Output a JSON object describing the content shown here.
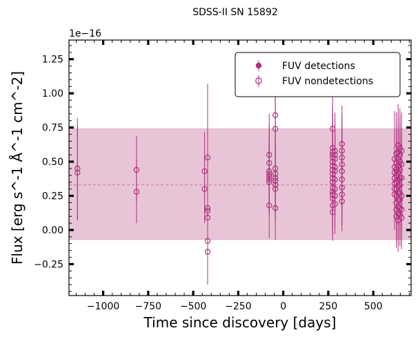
{
  "chart_data": {
    "type": "scatter",
    "title": "SDSS-II SN 15892",
    "xlabel": "Time since discovery [days]",
    "ylabel": "Flux [erg s^-1 Å^-1 cm^-2]",
    "y_offset_label": "1e−16",
    "xlim": [
      -1190,
      710
    ],
    "ylim": [
      -0.48,
      1.39
    ],
    "x_ticks": [
      -1000,
      -750,
      -500,
      -250,
      0,
      250,
      500
    ],
    "x_tick_labels": [
      "−1000",
      "−750",
      "−500",
      "−250",
      "0",
      "250",
      "500"
    ],
    "y_ticks": [
      -0.25,
      0.0,
      0.25,
      0.5,
      0.75,
      1.0,
      1.25
    ],
    "y_tick_labels": [
      "−0.25",
      "0.00",
      "0.25",
      "0.50",
      "0.75",
      "1.00",
      "1.25"
    ],
    "grid": false,
    "legend_position": "top-right",
    "colors": {
      "series": "#b0307f",
      "band_fill": "#e8c5d6",
      "band_edge": "#d8a2be",
      "median_line": "#d96a9a"
    },
    "band": {
      "low": -0.07,
      "high": 0.74,
      "median": 0.33
    },
    "series": [
      {
        "name": "FUV detections",
        "marker": "filled-circle",
        "points": []
      },
      {
        "name": "FUV nondetections",
        "marker": "open-circle",
        "points": [
          [
            -1143,
            0.45,
            0.37
          ],
          [
            -1143,
            0.42,
            0.35
          ],
          [
            -815,
            0.44,
            0.25
          ],
          [
            -815,
            0.28,
            0.23
          ],
          [
            -437,
            0.43,
            0.29
          ],
          [
            -437,
            0.3,
            0.25
          ],
          [
            -420,
            0.53,
            0.54
          ],
          [
            -420,
            0.16,
            0.28
          ],
          [
            -420,
            0.14,
            0.27
          ],
          [
            -420,
            0.09,
            0.26
          ],
          [
            -420,
            -0.08,
            0.29
          ],
          [
            -420,
            -0.16,
            0.24
          ],
          [
            -78,
            0.55,
            0.3
          ],
          [
            -78,
            0.49,
            0.28
          ],
          [
            -78,
            0.43,
            0.27
          ],
          [
            -78,
            0.41,
            0.26
          ],
          [
            -78,
            0.39,
            0.26
          ],
          [
            -78,
            0.37,
            0.25
          ],
          [
            -78,
            0.35,
            0.25
          ],
          [
            -78,
            0.18,
            0.24
          ],
          [
            -44,
            0.84,
            0.3
          ],
          [
            -44,
            0.74,
            0.28
          ],
          [
            -44,
            0.45,
            0.27
          ],
          [
            -44,
            0.41,
            0.26
          ],
          [
            -44,
            0.38,
            0.25
          ],
          [
            -44,
            0.36,
            0.25
          ],
          [
            -44,
            0.33,
            0.24
          ],
          [
            -44,
            0.3,
            0.24
          ],
          [
            -44,
            0.16,
            0.23
          ],
          [
            274,
            0.74,
            0.4
          ],
          [
            274,
            0.6,
            0.3
          ],
          [
            274,
            0.57,
            0.28
          ],
          [
            274,
            0.55,
            0.28
          ],
          [
            274,
            0.53,
            0.27
          ],
          [
            274,
            0.5,
            0.27
          ],
          [
            274,
            0.47,
            0.26
          ],
          [
            274,
            0.44,
            0.26
          ],
          [
            274,
            0.41,
            0.25
          ],
          [
            274,
            0.38,
            0.25
          ],
          [
            274,
            0.35,
            0.24
          ],
          [
            274,
            0.31,
            0.24
          ],
          [
            274,
            0.28,
            0.23
          ],
          [
            274,
            0.26,
            0.23
          ],
          [
            274,
            0.23,
            0.22
          ],
          [
            274,
            0.18,
            0.22
          ],
          [
            274,
            0.13,
            0.21
          ],
          [
            287,
            0.58,
            0.28
          ],
          [
            287,
            0.55,
            0.27
          ],
          [
            287,
            0.52,
            0.26
          ],
          [
            287,
            0.46,
            0.26
          ],
          [
            287,
            0.43,
            0.25
          ],
          [
            287,
            0.37,
            0.24
          ],
          [
            287,
            0.3,
            0.23
          ],
          [
            287,
            0.25,
            0.23
          ],
          [
            287,
            0.19,
            0.22
          ],
          [
            326,
            0.63,
            0.28
          ],
          [
            326,
            0.58,
            0.27
          ],
          [
            326,
            0.53,
            0.27
          ],
          [
            326,
            0.48,
            0.26
          ],
          [
            326,
            0.43,
            0.25
          ],
          [
            326,
            0.37,
            0.24
          ],
          [
            326,
            0.31,
            0.24
          ],
          [
            326,
            0.26,
            0.23
          ],
          [
            326,
            0.21,
            0.22
          ],
          [
            618,
            0.52,
            0.35
          ],
          [
            618,
            0.46,
            0.3
          ],
          [
            618,
            0.42,
            0.3
          ],
          [
            618,
            0.38,
            0.29
          ],
          [
            618,
            0.34,
            0.28
          ],
          [
            618,
            0.3,
            0.27
          ],
          [
            618,
            0.26,
            0.26
          ],
          [
            628,
            0.56,
            0.3
          ],
          [
            628,
            0.49,
            0.29
          ],
          [
            628,
            0.44,
            0.28
          ],
          [
            628,
            0.4,
            0.27
          ],
          [
            628,
            0.35,
            0.26
          ],
          [
            628,
            0.3,
            0.26
          ],
          [
            628,
            0.25,
            0.25
          ],
          [
            628,
            0.2,
            0.24
          ],
          [
            628,
            0.15,
            0.24
          ],
          [
            628,
            0.1,
            0.23
          ],
          [
            638,
            0.62,
            0.3
          ],
          [
            638,
            0.57,
            0.29
          ],
          [
            638,
            0.52,
            0.29
          ],
          [
            638,
            0.47,
            0.28
          ],
          [
            638,
            0.42,
            0.27
          ],
          [
            638,
            0.37,
            0.27
          ],
          [
            638,
            0.32,
            0.26
          ],
          [
            638,
            0.27,
            0.25
          ],
          [
            638,
            0.22,
            0.25
          ],
          [
            638,
            0.17,
            0.24
          ],
          [
            638,
            0.12,
            0.23
          ],
          [
            638,
            0.07,
            0.23
          ],
          [
            648,
            0.6,
            0.29
          ],
          [
            648,
            0.55,
            0.28
          ],
          [
            648,
            0.5,
            0.28
          ],
          [
            648,
            0.44,
            0.27
          ],
          [
            648,
            0.38,
            0.26
          ],
          [
            648,
            0.33,
            0.25
          ],
          [
            648,
            0.27,
            0.25
          ],
          [
            648,
            0.22,
            0.24
          ],
          [
            648,
            0.16,
            0.23
          ],
          [
            648,
            0.11,
            0.23
          ],
          [
            657,
            0.58,
            0.28
          ],
          [
            657,
            0.48,
            0.27
          ],
          [
            657,
            0.38,
            0.26
          ],
          [
            657,
            0.25,
            0.25
          ],
          [
            657,
            0.15,
            0.24
          ],
          [
            657,
            0.09,
            0.23
          ]
        ]
      }
    ]
  }
}
